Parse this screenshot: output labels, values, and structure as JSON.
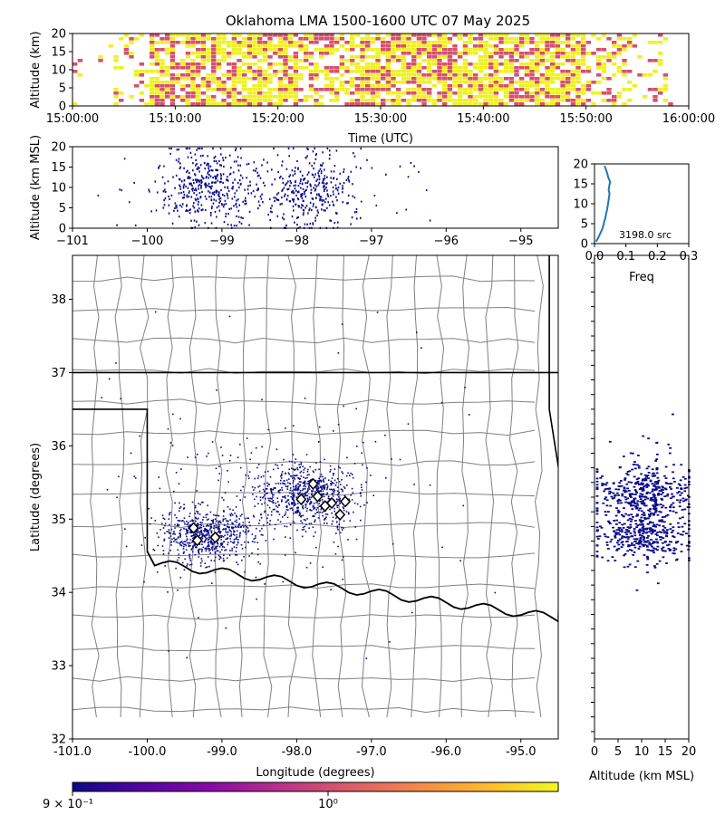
{
  "title": "Oklahoma LMA 1500-1600 UTC 07 May 2025",
  "chart_data": [
    {
      "panel": "time-height",
      "type": "heatmap",
      "xlabel": "Time (UTC)",
      "ylabel": "Altitude (km)",
      "x_ticks": [
        "15:00:00",
        "15:10:00",
        "15:20:00",
        "15:30:00",
        "15:40:00",
        "15:50:00",
        "16:00:00"
      ],
      "y_ticks": [
        "0",
        "5",
        "10",
        "15",
        "20"
      ],
      "xlim": [
        "15:00:00",
        "16:00:00"
      ],
      "ylim": [
        0,
        20
      ],
      "grid": false
    },
    {
      "panel": "longitude-altitude",
      "type": "scatter",
      "xlabel": "",
      "ylabel": "Altitude (km MSL)",
      "x_ticks": [
        "−101",
        "−100",
        "−99",
        "−98",
        "−97",
        "−96",
        "−95"
      ],
      "y_ticks": [
        "0",
        "5",
        "10",
        "15",
        "20"
      ],
      "xlim": [
        -101,
        -94.5
      ],
      "ylim": [
        0,
        20
      ],
      "grid": false
    },
    {
      "panel": "altitude-histogram",
      "type": "line",
      "xlabel": "Freq",
      "ylabel": "",
      "x_ticks": [
        "0.0",
        "0.1",
        "0.2",
        "0.3"
      ],
      "y_ticks": [
        "0",
        "5",
        "10",
        "15",
        "20"
      ],
      "xlim": [
        0,
        0.3
      ],
      "ylim": [
        0,
        20
      ],
      "annotation": "3198.0 src",
      "freq": [
        0.005,
        0.012,
        0.018,
        0.024,
        0.028,
        0.031,
        0.035,
        0.037,
        0.04,
        0.042,
        0.044,
        0.046,
        0.048,
        0.045,
        0.047,
        0.05,
        0.044,
        0.041,
        0.037,
        0.032
      ],
      "altitude_km": [
        0,
        1,
        2,
        3,
        4,
        5,
        6,
        7,
        8,
        9,
        10,
        11,
        12,
        13,
        14,
        15,
        16,
        17,
        18,
        19
      ]
    },
    {
      "panel": "plan-view",
      "type": "scatter",
      "xlabel": "Longitude (degrees)",
      "ylabel": "Latitude (degrees)",
      "x_ticks": [
        "-101.0",
        "-100.0",
        "-99.0",
        "-98.0",
        "-97.0",
        "-96.0",
        "-95.0"
      ],
      "y_ticks": [
        "32",
        "33",
        "34",
        "35",
        "36",
        "37",
        "38"
      ],
      "xlim": [
        -101,
        -94.5
      ],
      "ylim": [
        32,
        38.6
      ],
      "stations": [
        {
          "lon": -99.38,
          "lat": 34.88
        },
        {
          "lon": -99.33,
          "lat": 34.71
        },
        {
          "lon": -99.09,
          "lat": 34.75
        },
        {
          "lon": -97.94,
          "lat": 35.27
        },
        {
          "lon": -97.78,
          "lat": 35.48
        },
        {
          "lon": -97.72,
          "lat": 35.31
        },
        {
          "lon": -97.62,
          "lat": 35.18
        },
        {
          "lon": -97.53,
          "lat": 35.22
        },
        {
          "lon": -97.42,
          "lat": 35.06
        },
        {
          "lon": -97.35,
          "lat": 35.24
        }
      ],
      "grid": false
    },
    {
      "panel": "altitude-latitude",
      "type": "scatter",
      "xlabel": "Altitude (km MSL)",
      "ylabel": "",
      "x_ticks": [
        "0",
        "5",
        "10",
        "15",
        "20"
      ],
      "xlim": [
        0,
        20
      ],
      "ylim": [
        32,
        38.6
      ],
      "grid": false
    },
    {
      "panel": "colorbar",
      "type": "colorbar",
      "tick_labels": [
        "9 × 10⁻¹",
        "10⁰"
      ],
      "colormap": "plasma"
    }
  ],
  "colors": {
    "points": "#0a0a8a",
    "th_yellow": "#f0f020",
    "th_pink": "#d6506e",
    "state_line": "#000000",
    "county_line": "#808080",
    "hist_line": "#1f77b4"
  }
}
